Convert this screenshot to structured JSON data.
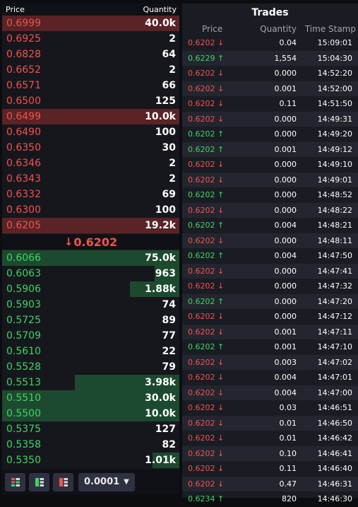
{
  "orderbook": {
    "header": {
      "price": "Price",
      "quantity": "Quantity"
    },
    "asks": [
      {
        "price": "0.6999",
        "qty": "40.0k",
        "depth": 1.0
      },
      {
        "price": "0.6925",
        "qty": "2",
        "depth": 0
      },
      {
        "price": "0.6828",
        "qty": "64",
        "depth": 0
      },
      {
        "price": "0.6652",
        "qty": "2",
        "depth": 0
      },
      {
        "price": "0.6571",
        "qty": "66",
        "depth": 0
      },
      {
        "price": "0.6500",
        "qty": "125",
        "depth": 0
      },
      {
        "price": "0.6499",
        "qty": "10.0k",
        "depth": 1.0
      },
      {
        "price": "0.6490",
        "qty": "100",
        "depth": 0
      },
      {
        "price": "0.6350",
        "qty": "30",
        "depth": 0
      },
      {
        "price": "0.6346",
        "qty": "2",
        "depth": 0
      },
      {
        "price": "0.6343",
        "qty": "2",
        "depth": 0
      },
      {
        "price": "0.6332",
        "qty": "69",
        "depth": 0
      },
      {
        "price": "0.6300",
        "qty": "100",
        "depth": 0
      },
      {
        "price": "0.6205",
        "qty": "19.2k",
        "depth": 1.0
      }
    ],
    "last_price": "0.6202",
    "bids": [
      {
        "price": "0.6066",
        "qty": "75.0k",
        "depth": 1.0
      },
      {
        "price": "0.6063",
        "qty": "963",
        "depth": 0.14
      },
      {
        "price": "0.5906",
        "qty": "1.88k",
        "depth": 0.28
      },
      {
        "price": "0.5903",
        "qty": "74",
        "depth": 0
      },
      {
        "price": "0.5725",
        "qty": "89",
        "depth": 0
      },
      {
        "price": "0.5709",
        "qty": "77",
        "depth": 0
      },
      {
        "price": "0.5610",
        "qty": "22",
        "depth": 0
      },
      {
        "price": "0.5528",
        "qty": "79",
        "depth": 0
      },
      {
        "price": "0.5513",
        "qty": "3.98k",
        "depth": 0.59
      },
      {
        "price": "0.5510",
        "qty": "30.0k",
        "depth": 1.0
      },
      {
        "price": "0.5500",
        "qty": "10.0k",
        "depth": 1.0
      },
      {
        "price": "0.5375",
        "qty": "127",
        "depth": 0
      },
      {
        "price": "0.5358",
        "qty": "82",
        "depth": 0
      },
      {
        "price": "0.5350",
        "qty": "1.01k",
        "depth": 0.15
      }
    ],
    "toolbar": {
      "view_buttons": [
        {
          "name": "both-sides",
          "icon": "orderbook-both-icon"
        },
        {
          "name": "bids-only",
          "icon": "orderbook-bids-icon"
        },
        {
          "name": "asks-only",
          "icon": "orderbook-asks-icon"
        }
      ],
      "precision": "0.0001"
    }
  },
  "trades": {
    "title": "Trades",
    "header": {
      "price": "Price",
      "quantity": "Quantity",
      "time": "Time Stamp"
    },
    "rows": [
      {
        "price": "0.6202",
        "dir": "down",
        "qty": "0.04",
        "time": "15:09:01"
      },
      {
        "price": "0.6229",
        "dir": "up",
        "qty": "1,554",
        "time": "15:04:30"
      },
      {
        "price": "0.6202",
        "dir": "down",
        "qty": "0.000",
        "time": "14:52:20"
      },
      {
        "price": "0.6202",
        "dir": "down",
        "qty": "0.001",
        "time": "14:52:00"
      },
      {
        "price": "0.6202",
        "dir": "down",
        "qty": "0.11",
        "time": "14:51:50"
      },
      {
        "price": "0.6202",
        "dir": "down",
        "qty": "0.000",
        "time": "14:49:31"
      },
      {
        "price": "0.6202",
        "dir": "up",
        "qty": "0.000",
        "time": "14:49:20"
      },
      {
        "price": "0.6202",
        "dir": "up",
        "qty": "0.001",
        "time": "14:49:12"
      },
      {
        "price": "0.6202",
        "dir": "down",
        "qty": "0.000",
        "time": "14:49:10"
      },
      {
        "price": "0.6202",
        "dir": "down",
        "qty": "0.000",
        "time": "14:49:01"
      },
      {
        "price": "0.6202",
        "dir": "up",
        "qty": "0.000",
        "time": "14:48:52"
      },
      {
        "price": "0.6202",
        "dir": "down",
        "qty": "0.000",
        "time": "14:48:22"
      },
      {
        "price": "0.6202",
        "dir": "up",
        "qty": "0.004",
        "time": "14:48:21"
      },
      {
        "price": "0.6202",
        "dir": "down",
        "qty": "0.000",
        "time": "14:48:11"
      },
      {
        "price": "0.6202",
        "dir": "up",
        "qty": "0.004",
        "time": "14:47:50"
      },
      {
        "price": "0.6202",
        "dir": "down",
        "qty": "0.000",
        "time": "14:47:41"
      },
      {
        "price": "0.6202",
        "dir": "down",
        "qty": "0.000",
        "time": "14:47:32"
      },
      {
        "price": "0.6202",
        "dir": "up",
        "qty": "0.000",
        "time": "14:47:20"
      },
      {
        "price": "0.6202",
        "dir": "down",
        "qty": "0.000",
        "time": "14:47:12"
      },
      {
        "price": "0.6202",
        "dir": "down",
        "qty": "0.001",
        "time": "14:47:11"
      },
      {
        "price": "0.6202",
        "dir": "up",
        "qty": "0.001",
        "time": "14:47:10"
      },
      {
        "price": "0.6202",
        "dir": "down",
        "qty": "0.003",
        "time": "14:47:02"
      },
      {
        "price": "0.6202",
        "dir": "down",
        "qty": "0.004",
        "time": "14:47:01"
      },
      {
        "price": "0.6202",
        "dir": "down",
        "qty": "0.004",
        "time": "14:47:00"
      },
      {
        "price": "0.6202",
        "dir": "down",
        "qty": "0.03",
        "time": "14:46:51"
      },
      {
        "price": "0.6202",
        "dir": "down",
        "qty": "0.01",
        "time": "14:46:50"
      },
      {
        "price": "0.6202",
        "dir": "down",
        "qty": "0.01",
        "time": "14:46:42"
      },
      {
        "price": "0.6202",
        "dir": "down",
        "qty": "0.10",
        "time": "14:46:41"
      },
      {
        "price": "0.6202",
        "dir": "down",
        "qty": "0.11",
        "time": "14:46:40"
      },
      {
        "price": "0.6202",
        "dir": "down",
        "qty": "0.47",
        "time": "14:46:31"
      },
      {
        "price": "0.6234",
        "dir": "up",
        "qty": "820",
        "time": "14:46:30"
      }
    ]
  },
  "colors": {
    "up": "#3fd466",
    "down": "#f2534e",
    "ask_depth": "#5a2326",
    "bid_depth": "#1d4a2e"
  },
  "icons": {
    "up": "↑",
    "down": "↓"
  }
}
